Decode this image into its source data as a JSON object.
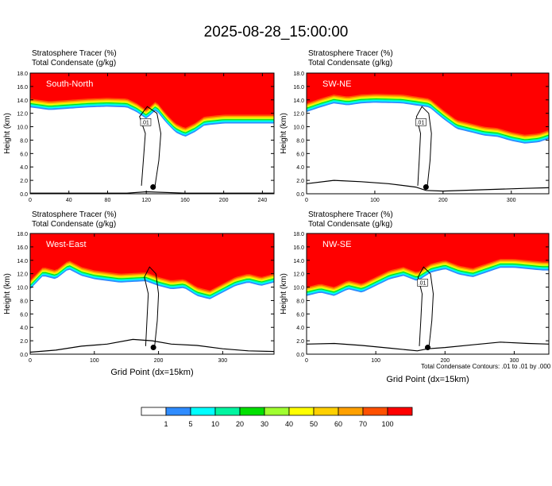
{
  "title": "2025-08-28_15:00:00",
  "footnote": "Total Condensate Contours: .01 to .01 by .000",
  "colorbar": {
    "labels": [
      "1",
      "5",
      "10",
      "20",
      "30",
      "40",
      "50",
      "60",
      "70",
      "100"
    ],
    "colors": [
      "#ffffff",
      "#2f8cff",
      "#00ffff",
      "#00f5a0",
      "#00e000",
      "#a0ff30",
      "#ffff00",
      "#ffd000",
      "#ffa000",
      "#ff5000",
      "#ff0000"
    ]
  },
  "chart_data": [
    {
      "type": "heatmap",
      "label": "South-North",
      "title_line1": "Stratosphere Tracer   (%)",
      "title_line2": "Total Condensate   (g/kg)",
      "ylabel": "Height (km)",
      "xlabel": "",
      "xlim": [
        0,
        252
      ],
      "ylim": [
        0,
        18
      ],
      "xticks": [
        "0",
        "40",
        "80",
        "120",
        "160",
        "200",
        "240"
      ],
      "xtick_values": [
        0,
        40,
        80,
        120,
        160,
        200,
        240
      ],
      "yticks": [
        "0.0",
        "2.0",
        "4.0",
        "6.0",
        "8.0",
        "10.0",
        "12.0",
        "14.0",
        "16.0",
        "18.0"
      ],
      "contour_label": ".01",
      "tracer_base_x": [
        0,
        20,
        40,
        60,
        80,
        100,
        110,
        120,
        130,
        140,
        150,
        160,
        170,
        180,
        200,
        220,
        240,
        252
      ],
      "tracer_base_km": [
        14.2,
        13.8,
        14.0,
        14.2,
        14.3,
        14.2,
        13.5,
        12.5,
        13.8,
        12.0,
        10.5,
        9.8,
        10.5,
        11.5,
        11.8,
        11.8,
        11.8,
        11.8
      ],
      "terrain_x": [
        0,
        60,
        100,
        120,
        160,
        200,
        252
      ],
      "terrain_km": [
        0.1,
        0.1,
        0.1,
        0.3,
        0.1,
        0.1,
        0.1
      ],
      "marker_x": 127,
      "marker_km": 1.0
    },
    {
      "type": "heatmap",
      "label": "SW-NE",
      "title_line1": "Stratosphere Tracer   (%)",
      "title_line2": "Total Condensate   (g/kg)",
      "ylabel": "Height (km)",
      "xlabel": "",
      "xlim": [
        0,
        355
      ],
      "ylim": [
        0,
        18
      ],
      "xticks": [
        "0",
        "100",
        "200",
        "300"
      ],
      "xtick_values": [
        0,
        100,
        200,
        300
      ],
      "yticks": [
        "0.0",
        "2.0",
        "4.0",
        "6.0",
        "8.0",
        "10.0",
        "12.0",
        "14.0",
        "16.0",
        "18.0"
      ],
      "contour_label": ".01",
      "tracer_base_x": [
        0,
        20,
        40,
        60,
        80,
        100,
        140,
        180,
        200,
        220,
        240,
        260,
        280,
        300,
        320,
        340,
        355
      ],
      "tracer_base_km": [
        13.5,
        14.2,
        14.8,
        14.5,
        14.8,
        14.9,
        14.8,
        14.2,
        12.5,
        11.0,
        10.5,
        10.0,
        9.8,
        9.2,
        8.8,
        9.0,
        9.5
      ],
      "terrain_x": [
        0,
        40,
        80,
        120,
        160,
        175,
        200,
        260,
        320,
        355
      ],
      "terrain_km": [
        1.5,
        2.0,
        1.8,
        1.5,
        1.0,
        0.5,
        0.4,
        0.6,
        0.8,
        0.9
      ],
      "marker_x": 175,
      "marker_km": 1.0
    },
    {
      "type": "heatmap",
      "label": "West-East",
      "title_line1": "Stratosphere Tracer   (%)",
      "title_line2": "Total Condensate   (g/kg)",
      "ylabel": "Height (km)",
      "xlabel": "Grid Point (dx=15km)",
      "xlim": [
        0,
        380
      ],
      "ylim": [
        0,
        18
      ],
      "xticks": [
        "0",
        "100",
        "200",
        "300"
      ],
      "xtick_values": [
        0,
        100,
        200,
        300
      ],
      "yticks": [
        "0.0",
        "2.0",
        "4.0",
        "6.0",
        "8.0",
        "10.0",
        "12.0",
        "14.0",
        "16.0",
        "18.0"
      ],
      "contour_label": "",
      "tracer_base_x": [
        0,
        20,
        40,
        60,
        80,
        100,
        140,
        180,
        200,
        220,
        240,
        260,
        280,
        300,
        320,
        340,
        360,
        380
      ],
      "tracer_base_km": [
        11.0,
        13.0,
        12.5,
        14.0,
        13.0,
        12.5,
        12.0,
        12.2,
        11.5,
        11.0,
        11.2,
        10.0,
        9.5,
        10.5,
        11.5,
        12.0,
        11.5,
        12.0
      ],
      "terrain_x": [
        0,
        40,
        80,
        120,
        160,
        190,
        220,
        260,
        300,
        340,
        380
      ],
      "terrain_km": [
        0.3,
        0.6,
        1.2,
        1.5,
        2.2,
        2.0,
        1.5,
        1.3,
        0.8,
        0.5,
        0.4
      ],
      "marker_x": 192,
      "marker_km": 1.0
    },
    {
      "type": "heatmap",
      "label": "NW-SE",
      "title_line1": "Stratosphere Tracer   (%)",
      "title_line2": "Total Condensate   (g/kg)",
      "ylabel": "Height (km)",
      "xlabel": "Grid Point (dx=15km)",
      "xlim": [
        0,
        350
      ],
      "ylim": [
        0,
        18
      ],
      "xticks": [
        "0",
        "100",
        "200",
        "300"
      ],
      "xtick_values": [
        0,
        100,
        200,
        300
      ],
      "yticks": [
        "0.0",
        "2.0",
        "4.0",
        "6.0",
        "8.0",
        "10.0",
        "12.0",
        "14.0",
        "16.0",
        "18.0"
      ],
      "contour_label": ".01",
      "tracer_base_x": [
        0,
        20,
        40,
        60,
        80,
        100,
        120,
        140,
        160,
        180,
        200,
        220,
        240,
        260,
        280,
        300,
        320,
        340,
        350
      ],
      "tracer_base_km": [
        10.0,
        10.5,
        10.0,
        11.0,
        10.5,
        11.5,
        12.5,
        13.0,
        12.2,
        13.5,
        14.0,
        13.2,
        12.8,
        13.5,
        14.2,
        14.2,
        14.0,
        13.8,
        13.8
      ],
      "terrain_x": [
        0,
        40,
        80,
        120,
        160,
        175,
        200,
        240,
        280,
        320,
        350
      ],
      "terrain_km": [
        1.5,
        1.6,
        1.3,
        0.9,
        0.5,
        0.8,
        1.0,
        1.4,
        1.8,
        1.6,
        1.5
      ],
      "marker_x": 175,
      "marker_km": 1.0
    }
  ]
}
